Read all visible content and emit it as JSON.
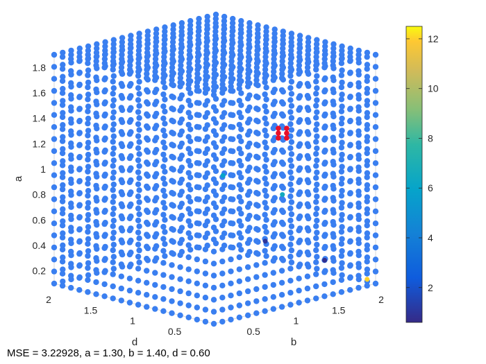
{
  "chart_data": {
    "type": "scatter",
    "scatter3d": true,
    "axes": {
      "a": {
        "label": "a",
        "range": [
          0.1,
          1.9
        ],
        "ticks": [
          "0.2",
          "0.4",
          "0.6",
          "0.8",
          "1",
          "1.2",
          "1.4",
          "1.6",
          "1.8"
        ]
      },
      "b": {
        "label": "b",
        "range": [
          0.1,
          2.0
        ],
        "ticks": [
          "0.5",
          "1",
          "1.5",
          "2"
        ]
      },
      "d": {
        "label": "d",
        "range": [
          0.1,
          2.0
        ],
        "ticks": [
          "0.5",
          "1",
          "1.5",
          "2"
        ]
      }
    },
    "grid_resolution": 20,
    "base_value": 4.1,
    "base_color": "#3a7ff0",
    "colorbar": {
      "min": 0.6,
      "max": 12.5,
      "ticks": [
        "2",
        "4",
        "6",
        "8",
        "10",
        "12"
      ],
      "colormap": "parula",
      "placement": "right"
    },
    "highlight_points": [
      {
        "a": 1.3,
        "b": 1.4,
        "d": 0.6,
        "value": 12.0,
        "color": "#e8102a"
      }
    ],
    "low_error_curve": [
      {
        "a": 0.15,
        "b": 1.9,
        "d": 0.1,
        "value": 12.0
      },
      {
        "a": 0.35,
        "b": 1.5,
        "d": 0.2,
        "value": 0.8
      },
      {
        "a": 0.55,
        "b": 1.0,
        "d": 0.4,
        "value": 1.0
      },
      {
        "a": 0.85,
        "b": 1.3,
        "d": 0.5,
        "value": 6.5
      },
      {
        "a": 1.05,
        "b": 0.8,
        "d": 0.7,
        "value": 6.0
      }
    ],
    "caption": "MSE = 3.22928, a = 1.30, b = 1.40, d = 0.60"
  }
}
